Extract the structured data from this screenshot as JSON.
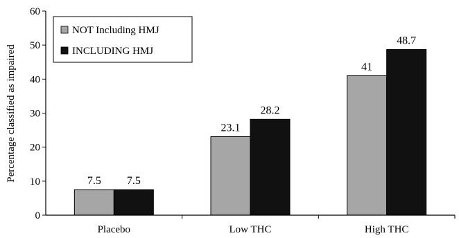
{
  "chart_data": {
    "type": "bar",
    "title": "",
    "xlabel": "",
    "ylabel": "Percentage classified as impaired",
    "ylim": [
      0,
      60
    ],
    "yticks": [
      0,
      10,
      20,
      30,
      40,
      50,
      60
    ],
    "grid": false,
    "legend_position": "top-left",
    "categories": [
      "Placebo",
      "Low THC",
      "High THC"
    ],
    "series": [
      {
        "name": "NOT Including HMJ",
        "values": [
          7.5,
          23.1,
          41
        ],
        "labels": [
          "7.5",
          "23.1",
          "41"
        ],
        "color": "#a6a6a6"
      },
      {
        "name": "INCLUDING HMJ",
        "values": [
          7.5,
          28.2,
          48.7
        ],
        "labels": [
          "7.5",
          "28.2",
          "48.7"
        ],
        "color": "#111111"
      }
    ]
  }
}
